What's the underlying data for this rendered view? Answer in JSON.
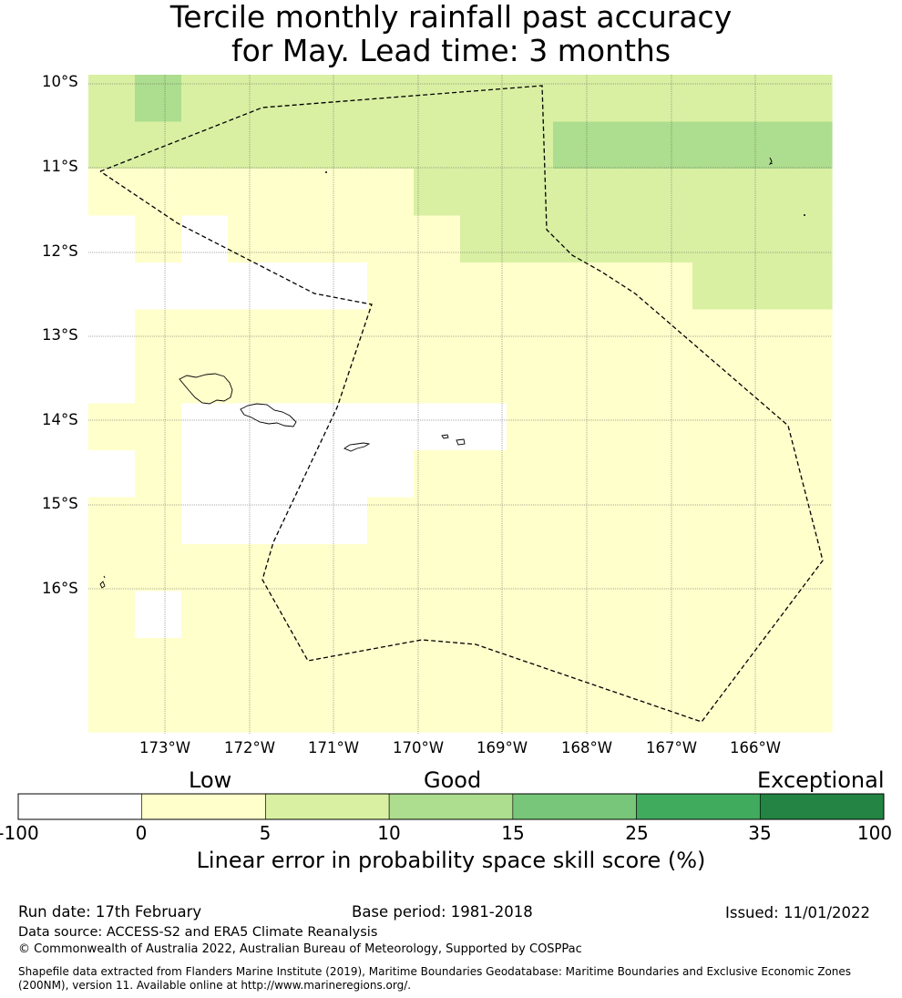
{
  "title": {
    "line1": "Tercile monthly rainfall past accuracy",
    "line2": "for May. Lead time: 3 months"
  },
  "map": {
    "lat_labels": [
      "10°S",
      "11°S",
      "12°S",
      "13°S",
      "14°S",
      "15°S",
      "16°S"
    ],
    "lon_labels": [
      "173°W",
      "172°W",
      "171°W",
      "170°W",
      "169°W",
      "168°W",
      "167°W",
      "166°W"
    ],
    "grid_class_rows": [
      [
        2,
        3,
        2,
        2,
        2,
        2,
        2,
        2,
        2,
        2,
        2,
        2,
        2,
        2,
        2,
        2
      ],
      [
        2,
        2,
        2,
        2,
        2,
        2,
        2,
        2,
        2,
        2,
        3,
        3,
        3,
        3,
        3,
        3
      ],
      [
        1,
        1,
        1,
        1,
        1,
        1,
        1,
        2,
        2,
        2,
        2,
        2,
        2,
        2,
        2,
        2
      ],
      [
        0,
        1,
        0,
        1,
        1,
        1,
        1,
        1,
        2,
        2,
        2,
        2,
        2,
        2,
        2,
        2
      ],
      [
        0,
        0,
        0,
        0,
        0,
        0,
        1,
        1,
        1,
        1,
        1,
        1,
        1,
        2,
        2,
        2
      ],
      [
        0,
        1,
        1,
        1,
        1,
        1,
        1,
        1,
        1,
        1,
        1,
        1,
        1,
        1,
        1,
        1
      ],
      [
        0,
        1,
        1,
        1,
        1,
        1,
        1,
        1,
        1,
        1,
        1,
        1,
        1,
        1,
        1,
        1
      ],
      [
        1,
        1,
        0,
        0,
        0,
        0,
        0,
        0,
        0,
        1,
        1,
        1,
        1,
        1,
        1,
        1
      ],
      [
        0,
        1,
        0,
        0,
        0,
        0,
        0,
        1,
        1,
        1,
        1,
        1,
        1,
        1,
        1,
        1
      ],
      [
        1,
        1,
        0,
        0,
        0,
        0,
        1,
        1,
        1,
        1,
        1,
        1,
        1,
        1,
        1,
        1
      ],
      [
        1,
        1,
        1,
        1,
        1,
        1,
        1,
        1,
        1,
        1,
        1,
        1,
        1,
        1,
        1,
        1
      ],
      [
        1,
        0,
        1,
        1,
        1,
        1,
        1,
        1,
        1,
        1,
        1,
        1,
        1,
        1,
        1,
        1
      ],
      [
        1,
        1,
        1,
        1,
        1,
        1,
        1,
        1,
        1,
        1,
        1,
        1,
        1,
        1,
        1,
        1
      ],
      [
        1,
        1,
        1,
        1,
        1,
        1,
        1,
        1,
        1,
        1,
        1,
        1,
        1,
        1,
        1,
        1
      ]
    ],
    "colorbar_colors": [
      "#ffffff",
      "#ffffcc",
      "#d9f0a3",
      "#addd8e",
      "#78c679",
      "#41ab5d",
      "#238443"
    ]
  },
  "legend": {
    "labels": {
      "low": "Low",
      "good": "Good",
      "exceptional": "Exceptional"
    },
    "ticks": [
      "-100",
      "0",
      "5",
      "10",
      "15",
      "25",
      "35",
      "100"
    ],
    "title": "Linear error in probability space skill score (%)"
  },
  "footer": {
    "run_date": "Run date: 17th February",
    "base_period": "Base period: 1981-2018",
    "issued": "Issued: 11/01/2022",
    "data_source": "Data source: ACCESS-S2 and ERA5 Climate Reanalysis",
    "copyright": "© Commonwealth of Australia 2022, Australian Bureau of Meteorology, Supported by COSPPac",
    "shapefile_1": "Shapefile data extracted from Flanders Marine Institute (2019), Maritime Boundaries Geodatabase: Maritime Boundaries and Exclusive Economic Zones",
    "shapefile_2": "(200NM), version 11. Available online at http://www.marineregions.org/."
  }
}
